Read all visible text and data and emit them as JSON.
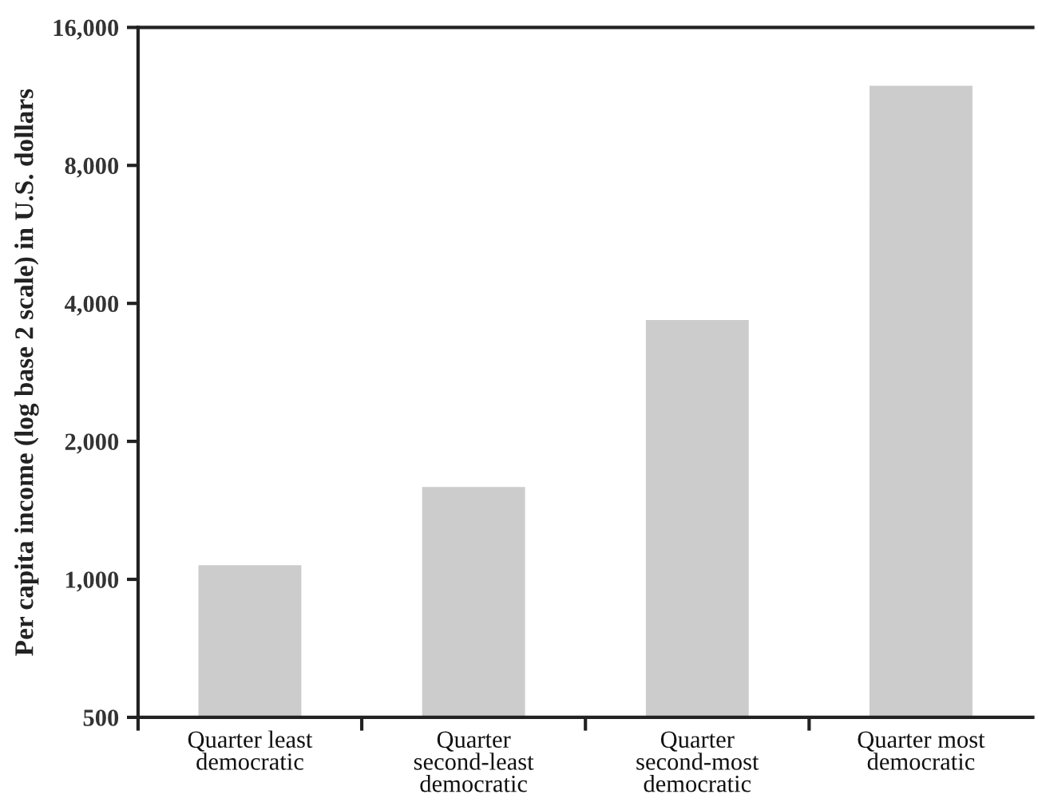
{
  "chart_data": {
    "type": "bar",
    "categories": [
      "Quarter least\ndemocratic",
      "Quarter\nsecond-least\ndemocratic",
      "Quarter\nsecond-most\ndemocratic",
      "Quarter most\ndemocratic"
    ],
    "values": [
      1080,
      1600,
      3700,
      12000
    ],
    "color": "#cccccc",
    "ylabel": "Per capita income (log base 2 scale) in U.S. dollars",
    "log": "y",
    "ylim": [
      500,
      16000
    ],
    "yticks": [
      500,
      {
        "value": 1000,
        "label": "1,000"
      },
      {
        "value": 2000,
        "label": "2,000"
      },
      {
        "value": 4000,
        "label": "4,000"
      },
      {
        "value": 8000,
        "label": "8,000"
      },
      {
        "value": 16000,
        "label": "16,000"
      }
    ]
  }
}
